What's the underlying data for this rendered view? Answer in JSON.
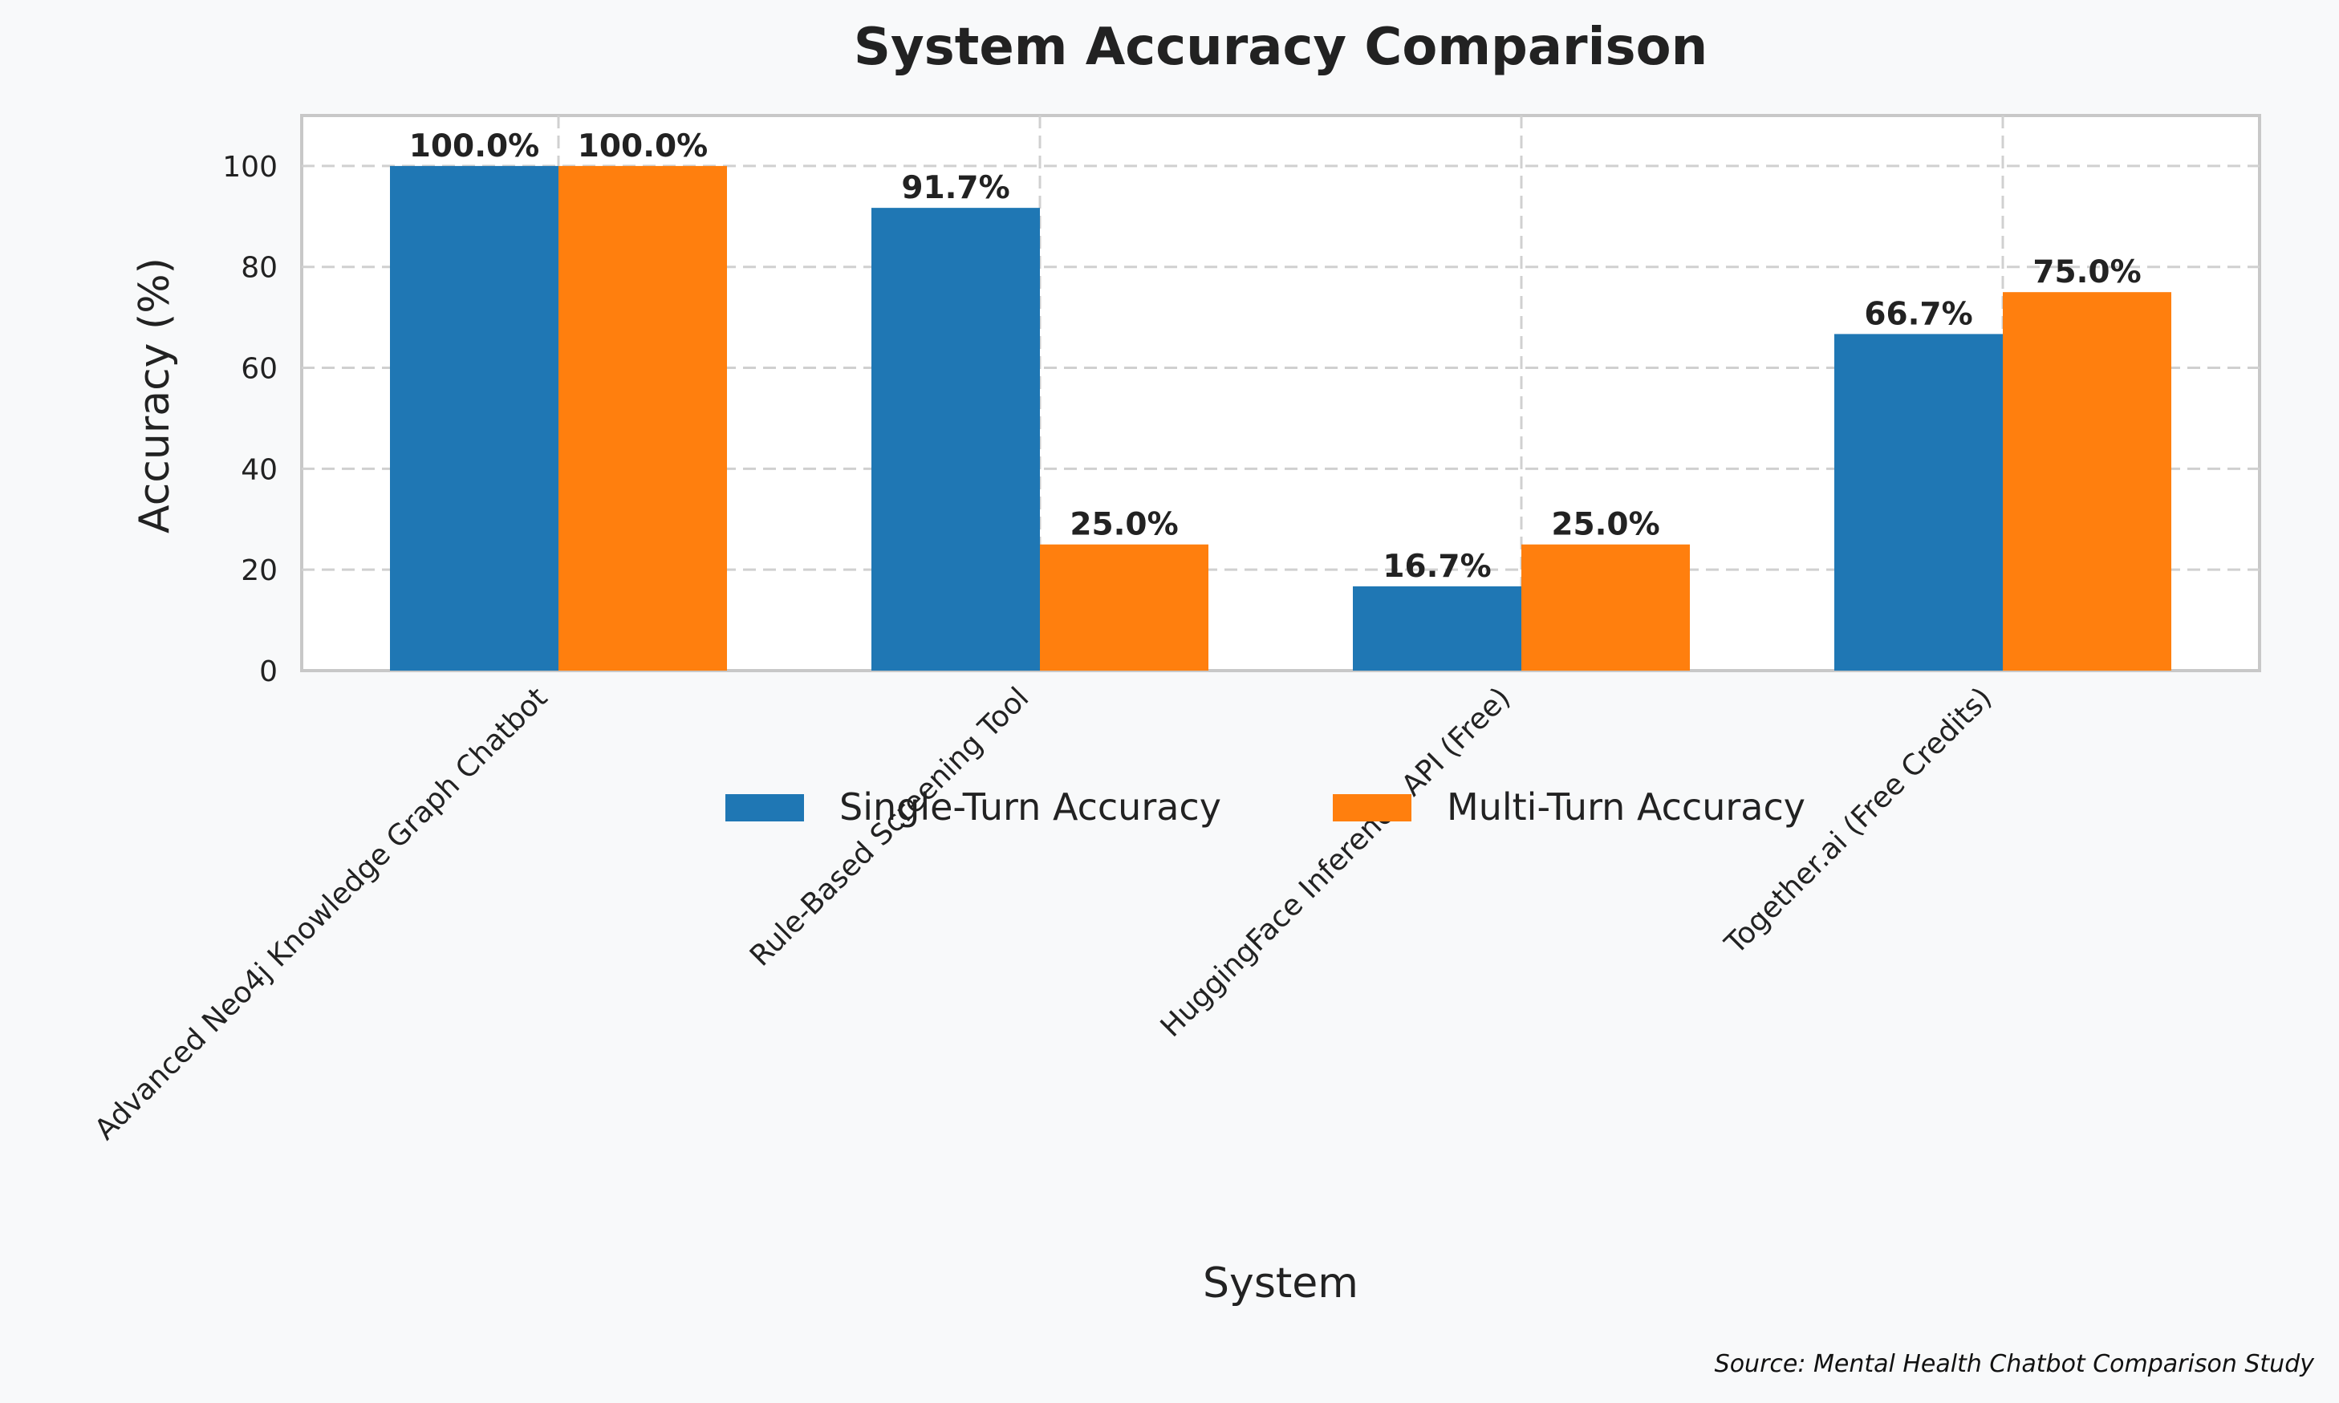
{
  "chart_data": {
    "type": "bar",
    "title": "System Accuracy Comparison",
    "xlabel": "System",
    "ylabel": "Accuracy (%)",
    "categories": [
      "Advanced Neo4j Knowledge Graph Chatbot",
      "Rule-Based Screening Tool",
      "HuggingFace Inference API (Free)",
      "Together.ai  (Free Credits)"
    ],
    "series": [
      {
        "name": "Single-Turn Accuracy",
        "color": "#1f77b4",
        "values": [
          100.0,
          91.7,
          16.7,
          66.7
        ],
        "labels": [
          "100.0%",
          "91.7%",
          "16.7%",
          "66.7%"
        ]
      },
      {
        "name": "Multi-Turn Accuracy",
        "color": "#ff7f0e",
        "values": [
          100.0,
          25.0,
          25.0,
          75.0
        ],
        "labels": [
          "100.0%",
          "25.0%",
          "25.0%",
          "75.0%"
        ]
      }
    ],
    "ylim": [
      0,
      110
    ],
    "yticks": [
      "0",
      "20",
      "40",
      "60",
      "80",
      "100"
    ],
    "grid": true,
    "legend_position": "below-plot",
    "source": "Source: Mental Health Chatbot Comparison Study"
  }
}
